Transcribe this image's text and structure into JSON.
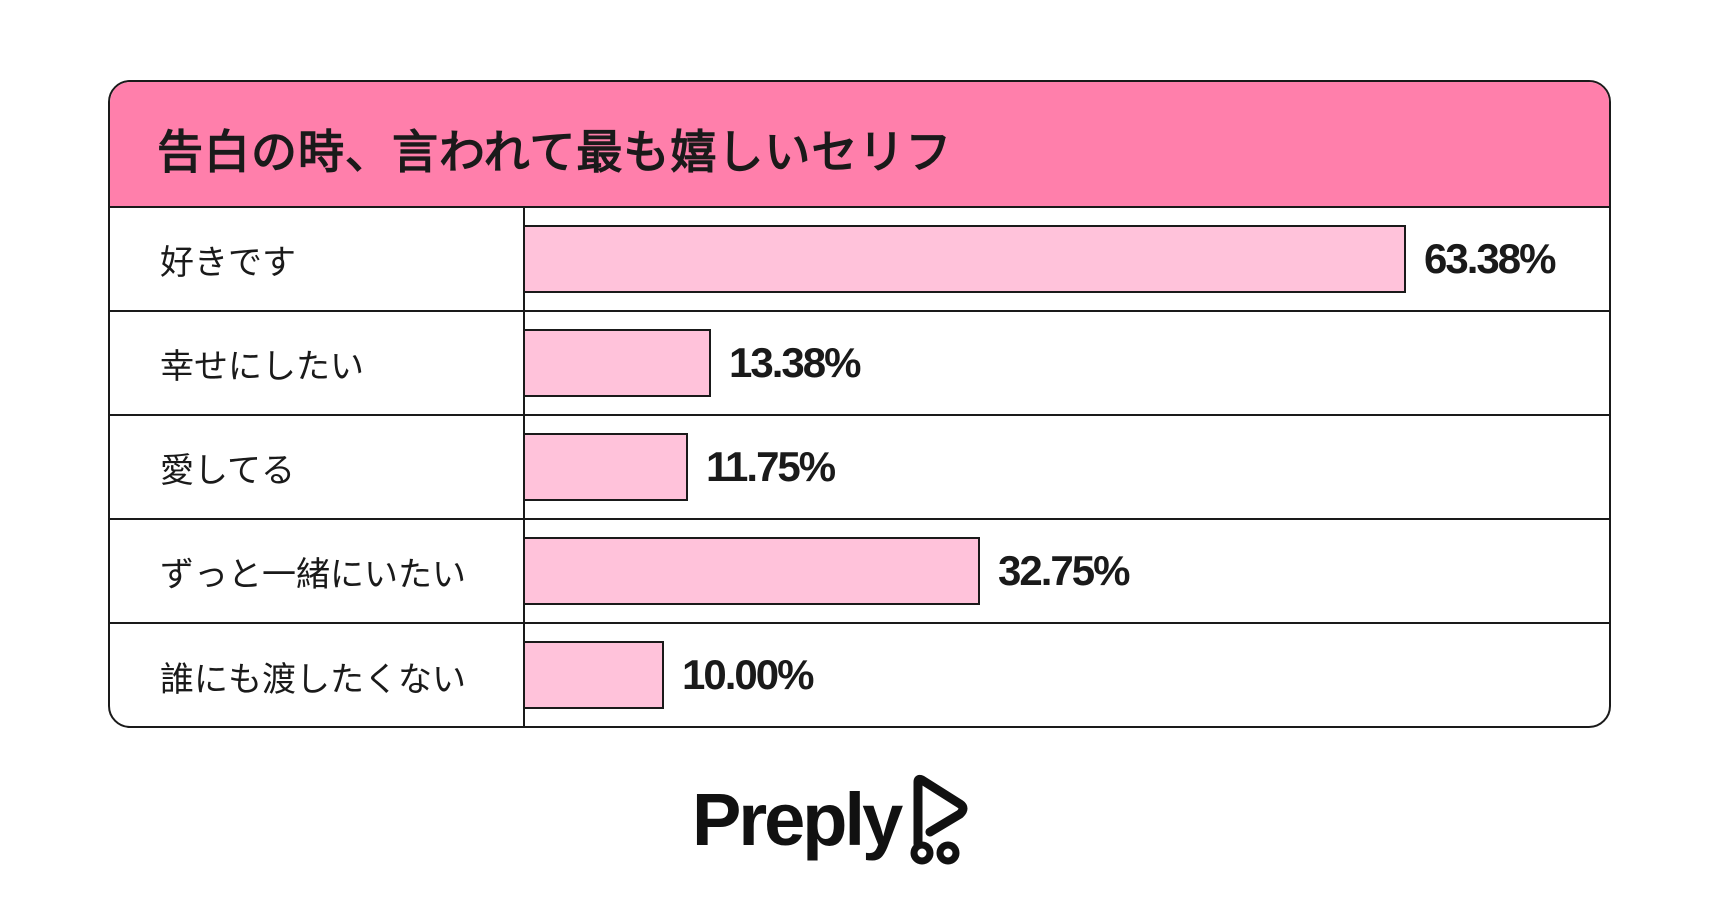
{
  "colors": {
    "header_bg": "#ff7fab",
    "bar_fill": "#ffc2da",
    "ink": "#1a1a1a"
  },
  "brand": {
    "name": "Preply",
    "icon": "preply-logo-icon"
  },
  "chart_data": {
    "type": "bar",
    "orientation": "horizontal",
    "title": "告白の時、言われて最も嬉しいセリフ",
    "categories": [
      "好きです",
      "幸せにしたい",
      "愛してる",
      "ずっと一緒にいたい",
      "誰にも渡したくない"
    ],
    "values": [
      63.38,
      13.38,
      11.75,
      32.75,
      10.0
    ],
    "value_labels": [
      "63.38%",
      "13.38%",
      "11.75%",
      "32.75%",
      "10.00%"
    ],
    "unit": "%",
    "xlim": [
      0,
      63.38
    ],
    "grid": false,
    "legend": "none"
  }
}
